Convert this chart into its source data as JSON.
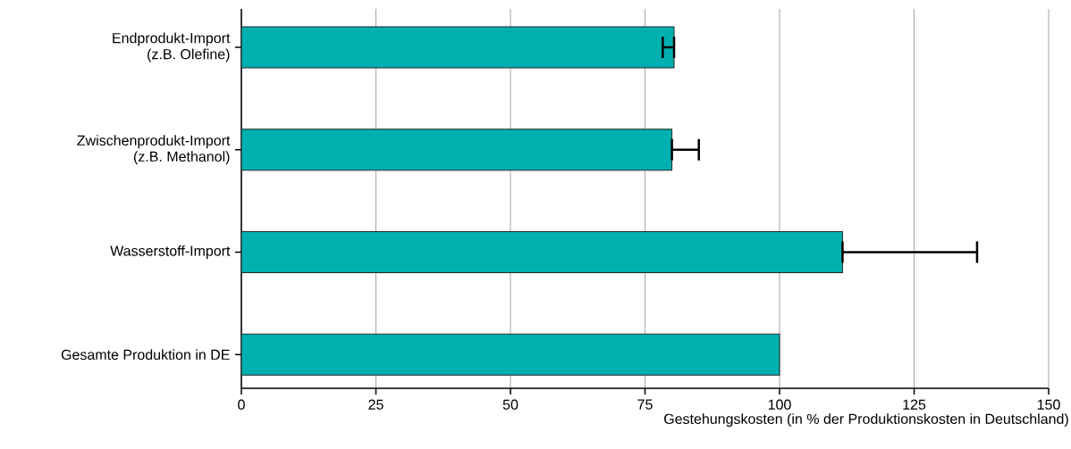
{
  "chart_data": {
    "type": "bar",
    "orientation": "horizontal",
    "categories": [
      "Endprodukt-Import (z.B. Olefine)",
      "Zwischenprodukt-Import (z.B. Methanol)",
      "Wasserstoff-Import",
      "Gesamte Produktion in DE"
    ],
    "values": [
      80.4,
      80.0,
      111.7,
      100
    ],
    "errors": [
      [
        78.3,
        80.4
      ],
      [
        80.0,
        85.0
      ],
      [
        111.7,
        136.7
      ],
      null
    ],
    "color": "#00b0b0",
    "xlim": [
      0,
      150
    ],
    "xticks": [
      0,
      25,
      50,
      75,
      100,
      125,
      150
    ],
    "grid": "x",
    "xlabel": "Gestehungskosten (in % der Produktionskosten in Deutschland)"
  }
}
